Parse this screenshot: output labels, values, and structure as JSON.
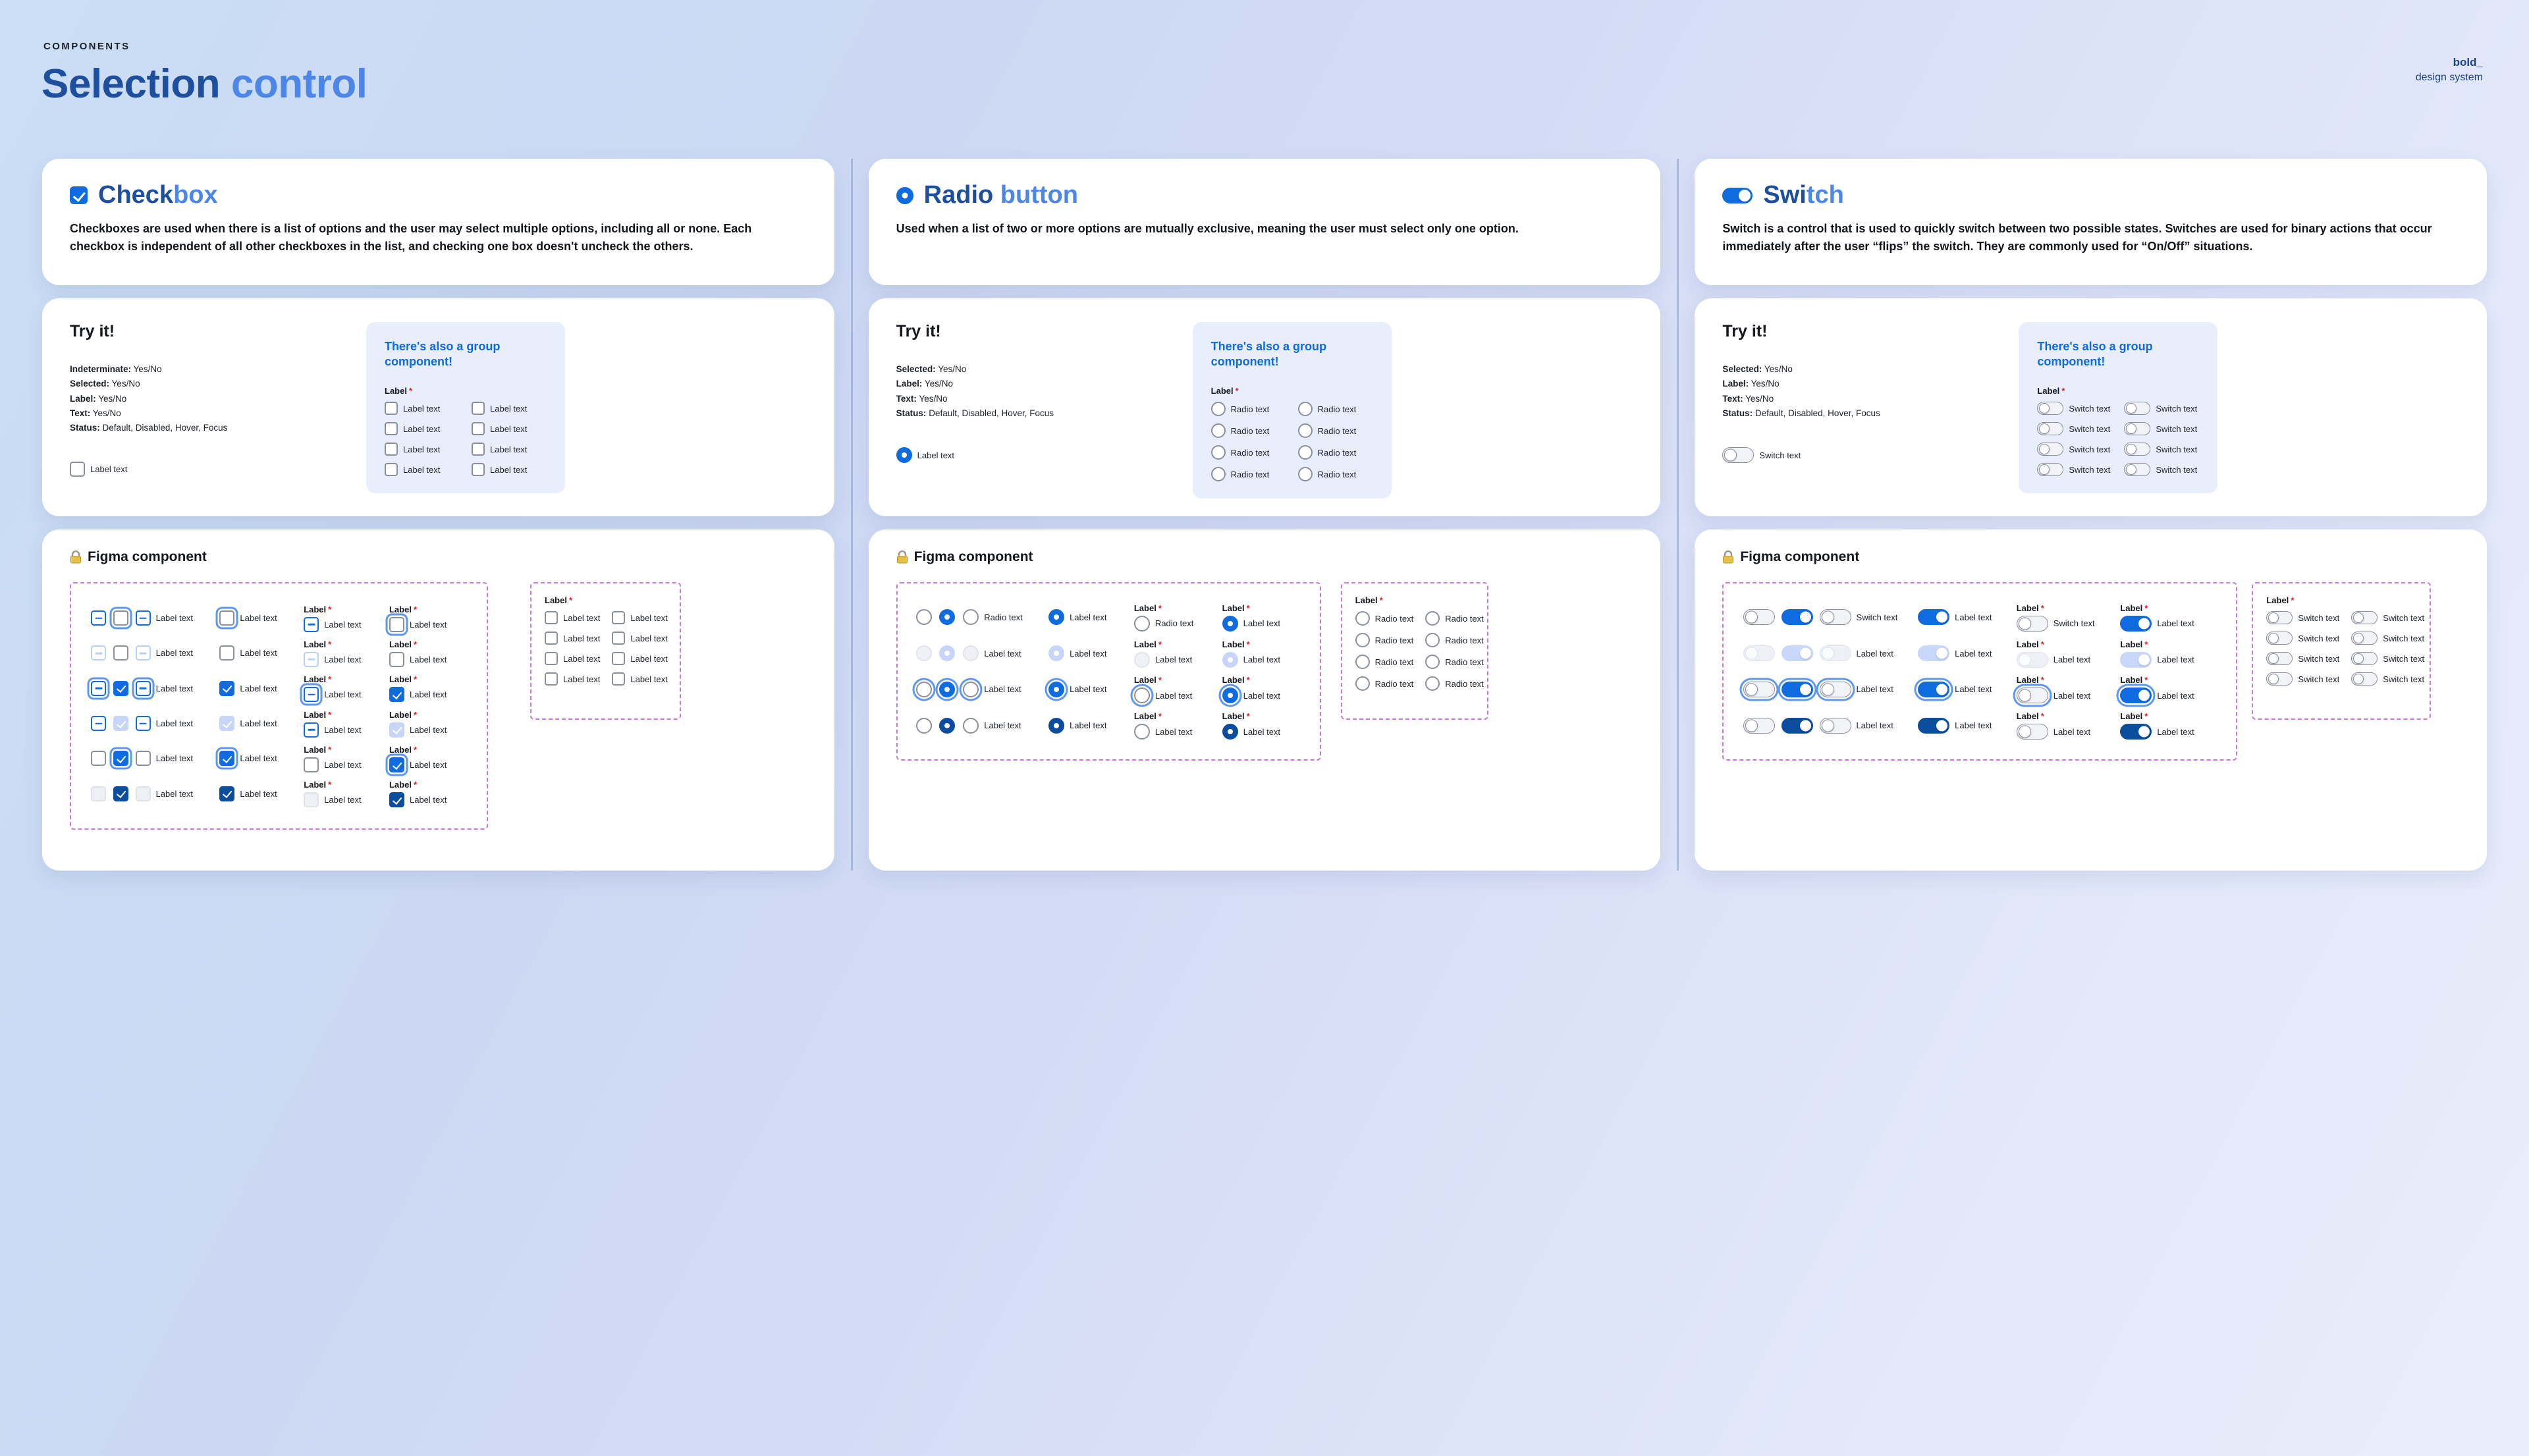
{
  "page": {
    "eyebrow": "COMPONENTS",
    "title_primary": "Selection ",
    "title_secondary": "control",
    "logo_line1": "bold_",
    "logo_line2": "design system"
  },
  "labels": {
    "try_it": "Try it!",
    "group_banner": "There's also a group component!",
    "figma_component": "Figma component",
    "label_field": "Label",
    "asterisk": "*",
    "label_text": "Label text",
    "radio_text": "Radio text",
    "switch_text": "Switch text"
  },
  "colors": {
    "primary_blue": "#0f6be0",
    "primary_dark": "#0a4d9e",
    "disabled_blue": "#c7d6f8",
    "focus_ring": "#5e97f0",
    "title_dark_blue": "#1d4f9e",
    "title_light_blue": "#4c86e8",
    "banner_blue": "#0f6be0",
    "required_red": "#da1e28",
    "dashed_frame_purple": "#c878d8",
    "group_panel_bg": "#e8eefc"
  },
  "columns": [
    {
      "key": "checkbox",
      "title_primary": "Check",
      "title_secondary": "box",
      "description": "Checkboxes are used when there is a list of options and the user may select multiple options, including all or none. Each checkbox is independent of all other checkboxes in the list, and checking one box doesn't uncheck the others.",
      "props": [
        {
          "name": "Indeterminate:",
          "value": "Yes/No"
        },
        {
          "name": "Selected:",
          "value": "Yes/No"
        },
        {
          "name": "Label:",
          "value": "Yes/No"
        },
        {
          "name": "Text:",
          "value": "Yes/No"
        },
        {
          "name": "Status:",
          "value": "Default, Disabled, Hover, Focus"
        }
      ],
      "sample": {
        "mode": "sample",
        "type": "checkbox",
        "state": "unchecked",
        "text": "label_text"
      },
      "try_group": {
        "mode": "group",
        "type": "checkbox",
        "state": "unchecked",
        "rows": 4,
        "cols": 2,
        "text": "label_text"
      },
      "figma": {
        "main": {
          "mode": "main",
          "type": "checkbox",
          "columns": [
            {
              "kind": "icon",
              "width": 24,
              "states": [
                "indeterminate",
                "indeterminate-disabled",
                "indeterminate-focus",
                "indeterminate",
                "unchecked",
                "unchecked-disabled"
              ]
            },
            {
              "kind": "icon",
              "width": 24,
              "states": [
                "unchecked-focus",
                "unchecked",
                "checked",
                "checked-disabled",
                "checked-focus",
                "checked-dark"
              ]
            },
            {
              "kind": "labeled",
              "width": 118,
              "states": [
                "indeterminate",
                "indeterminate-disabled",
                "indeterminate-focus",
                "indeterminate",
                "unchecked",
                "unchecked-disabled"
              ],
              "texts": "label_text"
            },
            {
              "kind": "labeled",
              "width": 118,
              "states": [
                "unchecked-focus",
                "unchecked",
                "checked",
                "checked-disabled",
                "checked-focus",
                "checked-dark"
              ],
              "texts": "label_text"
            },
            {
              "kind": "field",
              "width": 120,
              "states": [
                "indeterminate",
                "indeterminate-disabled",
                "indeterminate-focus",
                "indeterminate",
                "unchecked",
                "unchecked-disabled"
              ],
              "texts": "label_text"
            },
            {
              "kind": "field",
              "width": 118,
              "states": [
                "unchecked-focus",
                "unchecked",
                "checked",
                "checked-disabled",
                "checked-focus",
                "checked-dark"
              ],
              "texts": "label_text"
            }
          ]
        },
        "group": {
          "mode": "group",
          "type": "checkbox",
          "state": "unchecked",
          "rows": 4,
          "cols": 2,
          "text": "label_text"
        }
      }
    },
    {
      "key": "radio",
      "title_primary": "Radio ",
      "title_secondary": "button",
      "description": "Used when a list of two or more options are mutually exclusive, meaning the user must select only one option.",
      "props": [
        {
          "name": "Selected:",
          "value": "Yes/No"
        },
        {
          "name": "Label:",
          "value": "Yes/No"
        },
        {
          "name": "Text:",
          "value": "Yes/No"
        },
        {
          "name": "Status:",
          "value": "Default, Disabled, Hover, Focus"
        }
      ],
      "sample": {
        "mode": "sample",
        "type": "radio",
        "state": "checked",
        "text": "label_text"
      },
      "try_group": {
        "mode": "group",
        "type": "radio",
        "state": "unchecked",
        "rows": 4,
        "cols": 2,
        "text": "radio_text"
      },
      "figma": {
        "main": {
          "mode": "main",
          "type": "radio",
          "columns": [
            {
              "kind": "icon",
              "width": 26,
              "states": [
                "unchecked",
                "unchecked-disabled",
                "unchecked-focus",
                "unchecked"
              ]
            },
            {
              "kind": "icon",
              "width": 26,
              "states": [
                "checked",
                "checked-disabled",
                "checked-focus",
                "checked-dark"
              ]
            },
            {
              "kind": "labeled",
              "width": 120,
              "states": [
                "unchecked",
                "unchecked-disabled",
                "unchecked-focus",
                "unchecked"
              ],
              "texts": [
                "radio_text",
                "label_text",
                "label_text",
                "label_text"
              ]
            },
            {
              "kind": "labeled",
              "width": 120,
              "states": [
                "checked",
                "checked-disabled",
                "checked-focus",
                "checked-dark"
              ],
              "texts": "label_text"
            },
            {
              "kind": "field",
              "width": 124,
              "states": [
                "unchecked",
                "unchecked-disabled",
                "unchecked-focus",
                "unchecked"
              ],
              "texts": [
                "radio_text",
                "label_text",
                "label_text",
                "label_text"
              ]
            },
            {
              "kind": "field",
              "width": 120,
              "states": [
                "checked",
                "checked-disabled",
                "checked-focus",
                "checked-dark"
              ],
              "texts": "label_text"
            }
          ]
        },
        "group": {
          "mode": "group",
          "type": "radio",
          "state": "unchecked",
          "rows": 4,
          "cols": 2,
          "text": "radio_text"
        }
      }
    },
    {
      "key": "switch",
      "title_primary": "Swi",
      "title_secondary": "tch",
      "description": "Switch is a control that is used to quickly switch between two possible states. Switches are used for binary actions that occur immediately after the user “flips” the switch. They are commonly used for “On/Off” situations.",
      "props": [
        {
          "name": "Selected:",
          "value": "Yes/No"
        },
        {
          "name": "Label:",
          "value": "Yes/No"
        },
        {
          "name": "Text:",
          "value": "Yes/No"
        },
        {
          "name": "Status:",
          "value": "Default, Disabled, Hover, Focus"
        }
      ],
      "sample": {
        "mode": "sample",
        "type": "switch",
        "state": "off",
        "text": "switch_text"
      },
      "try_group": {
        "mode": "group",
        "type": "switch",
        "state": "off",
        "rows": 4,
        "cols": 2,
        "text": "switch_text"
      },
      "figma": {
        "main": {
          "mode": "main",
          "type": "switch",
          "columns": [
            {
              "kind": "icon",
              "width": 50,
              "states": [
                "off",
                "off-disabled",
                "off-focus",
                "off"
              ]
            },
            {
              "kind": "icon",
              "width": 50,
              "states": [
                "on",
                "on-disabled",
                "on-focus",
                "on-dark"
              ]
            },
            {
              "kind": "labeled",
              "width": 142,
              "states": [
                "off",
                "off-disabled",
                "off-focus",
                "off"
              ],
              "texts": [
                "switch_text",
                "label_text",
                "label_text",
                "label_text"
              ]
            },
            {
              "kind": "labeled",
              "width": 142,
              "states": [
                "on",
                "on-disabled",
                "on-focus",
                "on-dark"
              ],
              "texts": "label_text"
            },
            {
              "kind": "field",
              "width": 150,
              "states": [
                "off",
                "off-disabled",
                "off-focus",
                "off"
              ],
              "texts": [
                "switch_text",
                "label_text",
                "label_text",
                "label_text"
              ]
            },
            {
              "kind": "field",
              "width": 146,
              "states": [
                "on",
                "on-disabled",
                "on-focus",
                "on-dark"
              ],
              "texts": "label_text"
            }
          ]
        },
        "group": {
          "mode": "group",
          "type": "switch",
          "state": "off",
          "rows": 4,
          "cols": 2,
          "text": "switch_text"
        }
      }
    }
  ]
}
